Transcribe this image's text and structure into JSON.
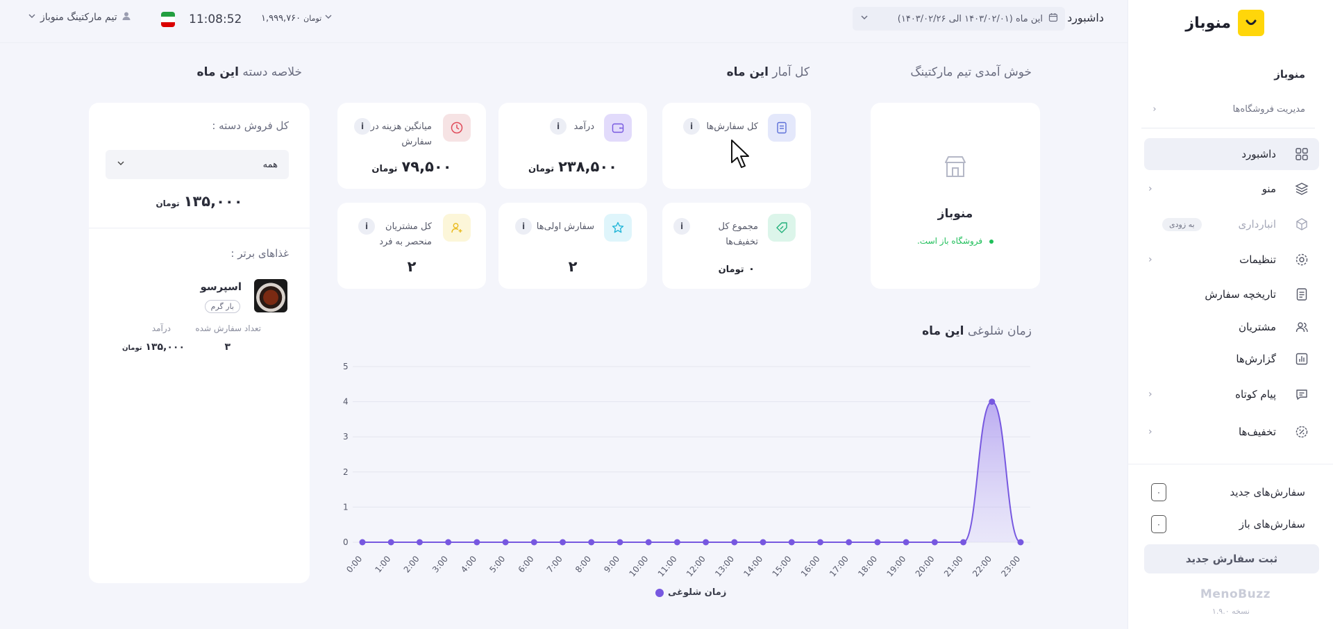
{
  "sidebar": {
    "brand_name": "منوباز",
    "section_title": "منوباز",
    "store_management": "مدیریت فروشگاه‌ها",
    "items": [
      {
        "label": "داشبورد",
        "icon": "grid-icon"
      },
      {
        "label": "منو",
        "icon": "layers-icon"
      },
      {
        "label": "انبارداری",
        "icon": "box-icon",
        "badge": "به زودی"
      },
      {
        "label": "تنظیمات",
        "icon": "gear-icon"
      },
      {
        "label": "تاریخچه سفارش",
        "icon": "document-icon"
      },
      {
        "label": "مشتریان",
        "icon": "users-icon"
      },
      {
        "label": "گزارش‌ها",
        "icon": "report-icon"
      },
      {
        "label": "پیام کوتاه",
        "icon": "message-icon"
      },
      {
        "label": "تخفیف‌ها",
        "icon": "discount-icon"
      }
    ],
    "new_orders_label": "سفارش‌های جدید",
    "new_orders_count": "۰",
    "open_orders_label": "سفارش‌های باز",
    "open_orders_count": "۰",
    "new_order_button": "ثبت سفارش جدید",
    "footer_brand": "MenoBuzz",
    "version": "نسخه ۱.۹.۰"
  },
  "topbar": {
    "dashboard_label": "داشبورد",
    "date_range": "این ماه (۱۴۰۳/۰۲/۰۱ الی ۱۴۰۳/۰۲/۲۶)",
    "user_name": "تیم مارکتینگ منوباز",
    "clock": "11:08:52",
    "wallet_amount": "۱,۹۹۹,۷۶۰",
    "wallet_unit": "تومان"
  },
  "headings": {
    "welcome": "خوش آمدی تیم مارکتینگ",
    "stats_prefix": "کل آمار",
    "stats_bold": "این ماه",
    "summary_prefix": "خلاصه دسته",
    "summary_bold": "این ماه",
    "busy_prefix": "زمان شلوغی",
    "busy_bold": "این ماه"
  },
  "store_card": {
    "name": "منوباز",
    "status": "فروشگاه باز است."
  },
  "stats": [
    {
      "title": "کل سفارش‌ها",
      "value": "",
      "unit": "",
      "icon_color": "#e4e8fb"
    },
    {
      "title": "درآمد",
      "value": "۲۳۸,۵۰۰",
      "unit": "تومان",
      "icon_color": "#e2dbfb"
    },
    {
      "title": "میانگین هزینه در هر سفارش",
      "value": "۷۹,۵۰۰",
      "unit": "تومان",
      "icon_color": "#f6e3e4"
    },
    {
      "title": "مجموع کل تخفیف‌ها",
      "value": "۰",
      "unit": "تومان",
      "icon_color": "#dcf5ea"
    },
    {
      "title": "سفارش اولی‌ها",
      "value": "۲",
      "unit": "",
      "icon_color": "#dff5fb"
    },
    {
      "title": "کل مشتریان منحصر به فرد",
      "value": "۲",
      "unit": "",
      "icon_color": "#fcf6d9"
    }
  ],
  "summary": {
    "total_label": "کل فروش دسته :",
    "select_value": "همه",
    "total_value": "۱۳۵,۰۰۰",
    "total_unit": "تومان",
    "top_foods_label": "غذاهای برتر :",
    "food_name": "اسپرسو",
    "food_tag": "بار گرم",
    "col_orders": "تعداد سفارش شده",
    "col_income": "درآمد",
    "orders_value": "۳",
    "income_value": "۱۳۵,۰۰۰",
    "income_unit": "تومان"
  },
  "chart_data": {
    "type": "area",
    "x": [
      "0:00",
      "1:00",
      "2:00",
      "3:00",
      "4:00",
      "5:00",
      "6:00",
      "7:00",
      "8:00",
      "9:00",
      "10:00",
      "11:00",
      "12:00",
      "13:00",
      "14:00",
      "15:00",
      "16:00",
      "17:00",
      "18:00",
      "19:00",
      "20:00",
      "21:00",
      "22:00",
      "23:00"
    ],
    "series": [
      {
        "name": "زمان شلوغی",
        "values": [
          0,
          0,
          0,
          0,
          0,
          0,
          0,
          0,
          0,
          0,
          0,
          0,
          0,
          0,
          0,
          0,
          0,
          0,
          0,
          0,
          0,
          0,
          4,
          0
        ],
        "color": "#7758e0"
      }
    ],
    "yticks": [
      0,
      1,
      2,
      3,
      4,
      5
    ],
    "ylim": [
      0,
      5
    ],
    "grid": true,
    "legend_position": "bottom"
  }
}
